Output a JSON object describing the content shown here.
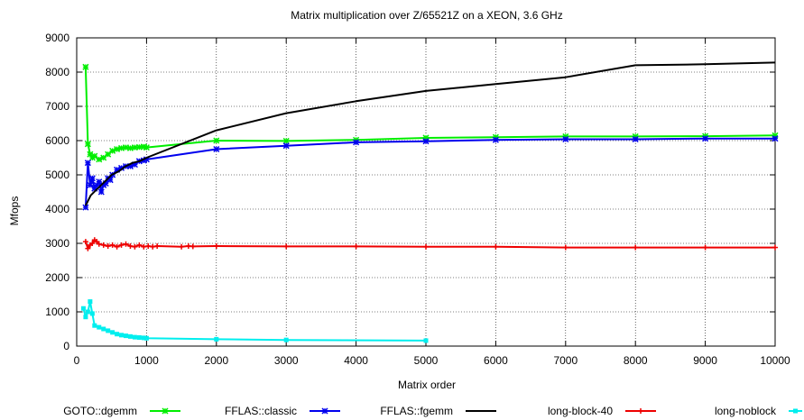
{
  "chart_data": {
    "type": "line",
    "title": "Matrix multiplication over Z/65521Z on a XEON, 3.6 GHz",
    "xlabel": "Matrix order",
    "ylabel": "Mfops",
    "xlim": [
      0,
      10000
    ],
    "ylim": [
      0,
      9000
    ],
    "xticks": [
      0,
      1000,
      2000,
      3000,
      4000,
      5000,
      6000,
      7000,
      8000,
      9000,
      10000
    ],
    "yticks": [
      0,
      1000,
      2000,
      3000,
      4000,
      5000,
      6000,
      7000,
      8000,
      9000
    ],
    "grid": true,
    "legend_position": "bottom",
    "series": [
      {
        "name": "GOTO::dgemm",
        "color": "#00ee00",
        "marker": "x",
        "x": [
          128,
          160,
          192,
          224,
          256,
          320,
          384,
          448,
          512,
          576,
          640,
          704,
          768,
          832,
          896,
          960,
          1000,
          2000,
          3000,
          4000,
          5000,
          6000,
          7000,
          8000,
          9000,
          10000
        ],
        "y": [
          8150,
          5900,
          5600,
          5500,
          5550,
          5450,
          5500,
          5600,
          5700,
          5750,
          5780,
          5800,
          5780,
          5800,
          5810,
          5820,
          5800,
          6000,
          5990,
          6020,
          6080,
          6100,
          6120,
          6120,
          6130,
          6150
        ]
      },
      {
        "name": "FFLAS::classic",
        "color": "#0000ee",
        "marker": "x",
        "x": [
          128,
          160,
          192,
          224,
          256,
          288,
          320,
          352,
          384,
          416,
          448,
          480,
          512,
          576,
          640,
          704,
          768,
          832,
          896,
          960,
          1000,
          2000,
          3000,
          4000,
          5000,
          6000,
          7000,
          8000,
          9000,
          10000
        ],
        "y": [
          4050,
          5350,
          4700,
          4900,
          4600,
          4700,
          4800,
          4500,
          4700,
          4750,
          4900,
          4850,
          5000,
          5150,
          5200,
          5250,
          5250,
          5300,
          5400,
          5420,
          5450,
          5750,
          5850,
          5950,
          5980,
          6020,
          6040,
          6040,
          6060,
          6060
        ]
      },
      {
        "name": "FFLAS::fgemm",
        "color": "#000000",
        "marker": "none",
        "x": [
          128,
          200,
          300,
          400,
          500,
          600,
          700,
          800,
          900,
          1000,
          2000,
          3000,
          4000,
          5000,
          6000,
          7000,
          8000,
          9000,
          10000
        ],
        "y": [
          4100,
          4400,
          4600,
          4800,
          5000,
          5100,
          5250,
          5350,
          5400,
          5500,
          6300,
          6800,
          7150,
          7450,
          7650,
          7850,
          8200,
          8230,
          8280
        ]
      },
      {
        "name": "long-block-40",
        "color": "#ee0000",
        "marker": "+",
        "x": [
          128,
          160,
          192,
          224,
          256,
          288,
          320,
          384,
          448,
          512,
          576,
          640,
          704,
          768,
          832,
          896,
          960,
          1024,
          1088,
          1152,
          1500,
          1600,
          1664,
          2000,
          3000,
          4000,
          5000,
          6000,
          7000,
          8000,
          9000,
          10000
        ],
        "y": [
          3050,
          2850,
          2950,
          3000,
          3100,
          3050,
          2980,
          2950,
          2920,
          2950,
          2900,
          2950,
          2980,
          2920,
          2900,
          2950,
          2900,
          2920,
          2900,
          2920,
          2900,
          2920,
          2910,
          2920,
          2910,
          2910,
          2900,
          2900,
          2880,
          2880,
          2880,
          2880
        ]
      },
      {
        "name": "long-noblock",
        "color": "#00eeee",
        "marker": "square",
        "x": [
          96,
          128,
          160,
          192,
          224,
          256,
          320,
          384,
          448,
          512,
          576,
          640,
          704,
          768,
          832,
          896,
          960,
          1000,
          2000,
          3000,
          5000
        ],
        "y": [
          1100,
          850,
          1000,
          1300,
          950,
          600,
          550,
          500,
          450,
          400,
          350,
          320,
          300,
          280,
          260,
          250,
          240,
          230,
          200,
          180,
          160
        ]
      }
    ]
  }
}
